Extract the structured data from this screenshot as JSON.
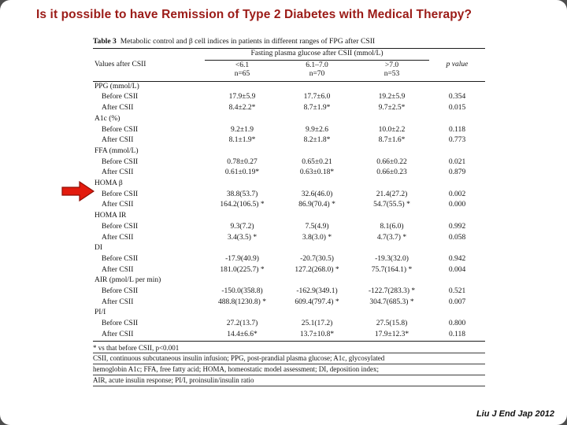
{
  "title": "Is it possible to have Remission of Type 2 Diabetes with Medical Therapy?",
  "citation": "Liu J End Jap 2012",
  "colors": {
    "title_red": "#9b1b17",
    "arrow_red": "#e31b0e",
    "slide_background": "#ffffff"
  },
  "table": {
    "caption_label": "Table 3",
    "caption_text": "Metabolic control and β cell indices in patients in different ranges of FPG after CSII",
    "row_header": "Values after CSII",
    "col_group_header": "Fasting plasma glucose after CSII (mmol/L)",
    "p_header": "p value",
    "columns": [
      {
        "range": "<6.1",
        "n": "n=65"
      },
      {
        "range": "6.1–7.0",
        "n": "n=70"
      },
      {
        "range": ">7.0",
        "n": "n=53"
      }
    ],
    "sections": [
      {
        "label": "PPG (mmol/L)",
        "rows": [
          {
            "label": "Before CSII",
            "values": [
              "17.9±5.9",
              "17.7±6.0",
              "19.2±5.9",
              "0.354"
            ]
          },
          {
            "label": "After CSII",
            "values": [
              "8.4±2.2*",
              "8.7±1.9*",
              "9.7±2.5*",
              "0.015"
            ]
          }
        ]
      },
      {
        "label": "A1c (%)",
        "rows": [
          {
            "label": "Before CSII",
            "values": [
              "9.2±1.9",
              "9.9±2.6",
              "10.0±2.2",
              "0.118"
            ]
          },
          {
            "label": "After CSII",
            "values": [
              "8.1±1.9*",
              "8.2±1.8*",
              "8.7±1.6*",
              "0.773"
            ]
          }
        ]
      },
      {
        "label": "FFA (mmol/L)",
        "rows": [
          {
            "label": "Before CSII",
            "values": [
              "0.78±0.27",
              "0.65±0.21",
              "0.66±0.22",
              "0.021"
            ]
          },
          {
            "label": "After CSII",
            "values": [
              "0.61±0.19*",
              "0.63±0.18*",
              "0.66±0.23",
              "0.879"
            ]
          }
        ]
      },
      {
        "label": "HOMA β",
        "rows": [
          {
            "label": "Before CSII",
            "values": [
              "38.8(53.7)",
              "32.6(46.0)",
              "21.4(27.2)",
              "0.002"
            ]
          },
          {
            "label": "After CSII",
            "values": [
              "164.2(106.5) *",
              "86.9(70.4) *",
              "54.7(55.5) *",
              "0.000"
            ]
          }
        ]
      },
      {
        "label": "HOMA IR",
        "rows": [
          {
            "label": "Before CSII",
            "values": [
              "9.3(7.2)",
              "7.5(4.9)",
              "8.1(6.0)",
              "0.992"
            ]
          },
          {
            "label": "After CSII",
            "values": [
              "3.4(3.5) *",
              "3.8(3.0) *",
              "4.7(3.7) *",
              "0.058"
            ]
          }
        ]
      },
      {
        "label": "DI",
        "rows": [
          {
            "label": "Before CSII",
            "values": [
              "-17.9(40.9)",
              "-20.7(30.5)",
              "-19.3(32.0)",
              "0.942"
            ]
          },
          {
            "label": "After CSII",
            "values": [
              "181.0(225.7) *",
              "127.2(268.0) *",
              "75.7(164.1) *",
              "0.004"
            ]
          }
        ]
      },
      {
        "label": "AIR (pmol/L per min)",
        "rows": [
          {
            "label": "Before CSII",
            "values": [
              "-150.0(358.8)",
              "-162.9(349.1)",
              "-122.7(283.3) *",
              "0.521"
            ]
          },
          {
            "label": "After CSII",
            "values": [
              "488.8(1230.8) *",
              "609.4(797.4) *",
              "304.7(685.3) *",
              "0.007"
            ]
          }
        ]
      },
      {
        "label": "PI/I",
        "rows": [
          {
            "label": "Before CSII",
            "values": [
              "27.2(13.7)",
              "25.1(17.2)",
              "27.5(15.8)",
              "0.800"
            ]
          },
          {
            "label": "After CSII",
            "values": [
              "14.4±6.6*",
              "13.7±10.8*",
              "17.9±12.3*",
              "0.118"
            ]
          }
        ]
      }
    ],
    "footnotes": [
      "* vs that before CSII, p<0.001",
      "CSII, continuous subcutaneous insulin infusion; PPG, post-prandial plasma glucose; A1c, glycosylated",
      "hemoglobin A1c; FFA, free fatty acid; HOMA, homeostatic model assessment; DI, deposition index;",
      "AIR, acute insulin response; PI/I, proinsulin/insulin ratio"
    ]
  }
}
